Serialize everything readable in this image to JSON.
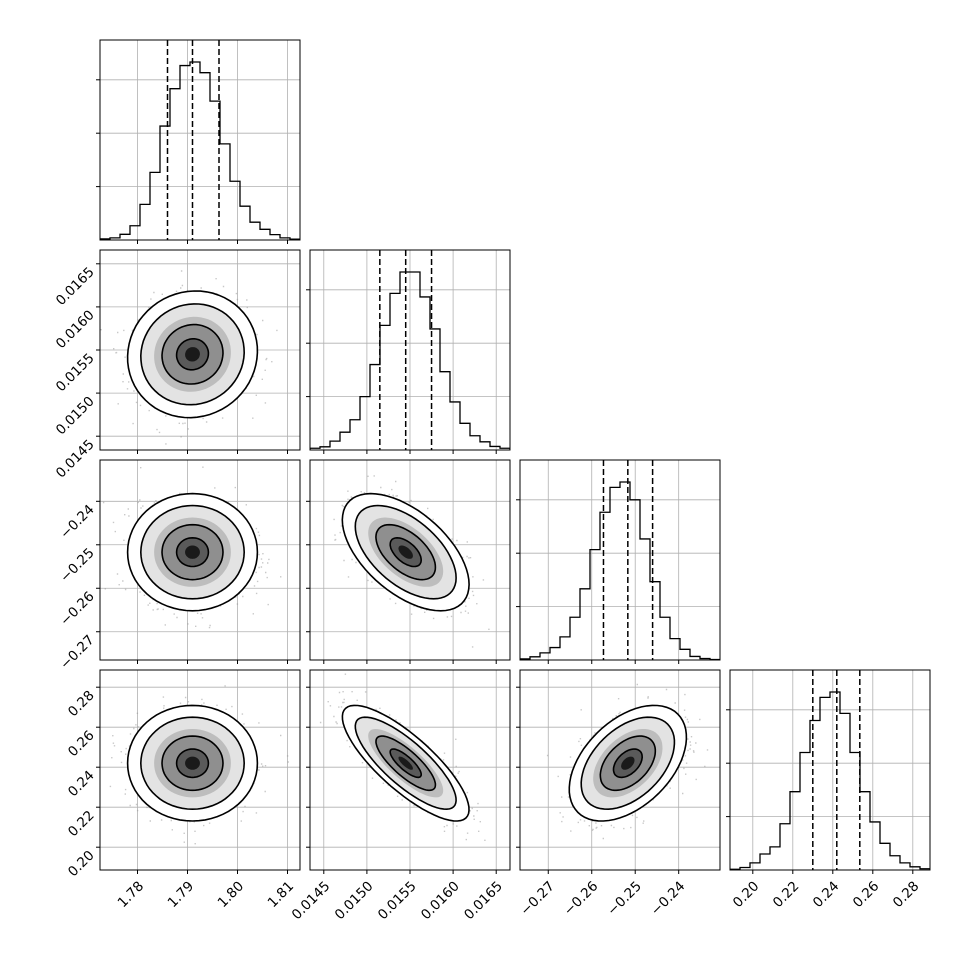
{
  "chart_data": {
    "type": "corner",
    "grid": true,
    "parameters": [
      {
        "range": [
          1.7725,
          1.8125
        ],
        "ticks": [
          1.78,
          1.79,
          1.8,
          1.81
        ],
        "tick_labels": [
          "1.78",
          "1.79",
          "1.80",
          "1.81"
        ],
        "mean": 1.791,
        "std": 0.0053,
        "quantiles": [
          1.786,
          1.791,
          1.7963
        ],
        "hist": [
          0.006,
          0.012,
          0.032,
          0.08,
          0.2,
          0.38,
          0.64,
          0.85,
          0.98,
          1.0,
          0.94,
          0.78,
          0.54,
          0.33,
          0.19,
          0.1,
          0.06,
          0.03,
          0.012,
          0.005
        ]
      },
      {
        "range": [
          0.01434,
          0.01666
        ],
        "ticks": [
          0.0145,
          0.015,
          0.0155,
          0.016,
          0.0165
        ],
        "tick_labels": [
          "0.0145",
          "0.0150",
          "0.0155",
          "0.0160",
          "0.0165"
        ],
        "mean": 0.01545,
        "std": 0.0003,
        "quantiles": [
          0.01515,
          0.01545,
          0.01575
        ],
        "hist": [
          0.01,
          0.018,
          0.05,
          0.1,
          0.17,
          0.3,
          0.48,
          0.7,
          0.88,
          1.0,
          1.0,
          0.86,
          0.68,
          0.44,
          0.27,
          0.15,
          0.08,
          0.046,
          0.02,
          0.01
        ]
      },
      {
        "range": [
          -0.2765,
          -0.2305
        ],
        "ticks": [
          -0.27,
          -0.26,
          -0.25,
          -0.24
        ],
        "tick_labels": [
          "−0.27",
          "−0.26",
          "−0.25",
          "−0.24"
        ],
        "mean": -0.2517,
        "std": 0.0055,
        "quantiles": [
          -0.2573,
          -0.2517,
          -0.246
        ],
        "hist": [
          0.006,
          0.018,
          0.04,
          0.07,
          0.13,
          0.24,
          0.4,
          0.62,
          0.83,
          0.97,
          1.0,
          0.9,
          0.68,
          0.44,
          0.24,
          0.12,
          0.06,
          0.02,
          0.008,
          0.003
        ]
      },
      {
        "range": [
          0.1886,
          0.2886
        ],
        "ticks": [
          0.2,
          0.22,
          0.24,
          0.26,
          0.28
        ],
        "tick_labels": [
          "0.20",
          "0.22",
          "0.24",
          "0.26",
          "0.28"
        ],
        "mean": 0.242,
        "std": 0.0118,
        "quantiles": [
          0.23,
          0.242,
          0.2535
        ],
        "hist": [
          0.004,
          0.014,
          0.04,
          0.09,
          0.13,
          0.26,
          0.44,
          0.66,
          0.84,
          0.97,
          1.0,
          0.88,
          0.66,
          0.44,
          0.27,
          0.15,
          0.08,
          0.04,
          0.018,
          0.007
        ]
      }
    ],
    "correlations": [
      {
        "i": 1,
        "j": 0,
        "rho": 0.05
      },
      {
        "i": 2,
        "j": 0,
        "rho": 0.0
      },
      {
        "i": 2,
        "j": 1,
        "rho": -0.55
      },
      {
        "i": 3,
        "j": 0,
        "rho": 0.0
      },
      {
        "i": 3,
        "j": 1,
        "rho": -0.8
      },
      {
        "i": 3,
        "j": 2,
        "rho": 0.45
      }
    ]
  }
}
